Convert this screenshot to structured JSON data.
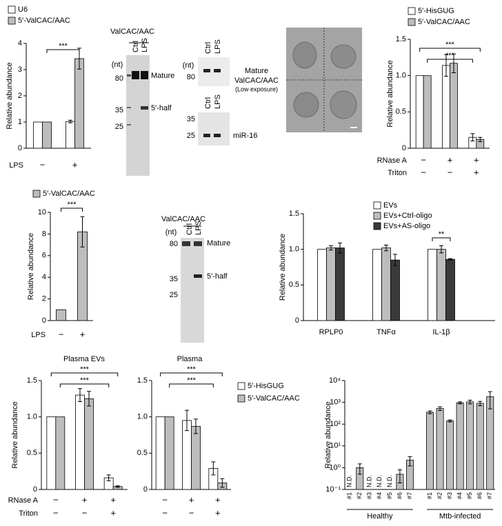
{
  "chart_data": [
    {
      "type": "bar",
      "ylabel": "Relative abundance",
      "ylim": [
        0,
        4
      ],
      "yticks": [
        0,
        1,
        2,
        3,
        4
      ],
      "series": [
        {
          "name": "U6",
          "color": "#ffffff",
          "values": [
            1,
            1.02
          ],
          "errors": [
            0,
            0.05
          ]
        },
        {
          "name": "5′-ValCAC/AAC",
          "color": "#bdbdbd",
          "values": [
            1,
            3.42
          ],
          "errors": [
            0,
            0.4
          ]
        }
      ],
      "category_rows": [
        {
          "label": "LPS",
          "categories": [
            "−",
            "+"
          ]
        }
      ],
      "significance": [
        "***"
      ]
    },
    {
      "type": "bar",
      "ylabel": "Relative abundance",
      "ylim": [
        0,
        1.5
      ],
      "yticks": [
        0,
        0.5,
        {
          "value": 1,
          "label": "1.0"
        },
        1.5
      ],
      "series": [
        {
          "name": "5′-HisGUG",
          "color": "#ffffff",
          "values": [
            1,
            1.14,
            0.15
          ],
          "errors": [
            0,
            0.15,
            0.05
          ]
        },
        {
          "name": "5′-ValCAC/AAC",
          "color": "#bdbdbd",
          "values": [
            1,
            1.17,
            0.12
          ],
          "errors": [
            0,
            0.13,
            0.03
          ]
        }
      ],
      "category_rows": [
        {
          "label": "RNase A",
          "categories": [
            "−",
            "+",
            "+"
          ]
        },
        {
          "label": "Triton",
          "categories": [
            "−",
            "−",
            "+"
          ]
        }
      ],
      "significance": [
        "***",
        "***"
      ]
    },
    {
      "type": "bar",
      "ylabel": "Relative abundance",
      "ylim": [
        0,
        10
      ],
      "yticks": [
        0,
        2,
        4,
        6,
        8,
        10
      ],
      "series": [
        {
          "name": "5′-ValCAC/AAC",
          "color": "#bdbdbd",
          "values": [
            1,
            8.2
          ],
          "errors": [
            0,
            1.4
          ]
        }
      ],
      "category_rows": [
        {
          "label": "LPS",
          "categories": [
            "−",
            "+"
          ]
        }
      ],
      "significance": [
        "***"
      ]
    },
    {
      "type": "bar",
      "ylabel": "Relative abundance",
      "ylim": [
        0,
        1.5
      ],
      "yticks": [
        0,
        0.5,
        {
          "value": 1,
          "label": "1.0"
        },
        1.5
      ],
      "categories": [
        "RPLP0",
        "TNFα",
        "IL-1β"
      ],
      "series": [
        {
          "name": "EVs",
          "color": "#ffffff",
          "values": [
            1,
            1,
            1
          ],
          "errors": [
            0,
            0,
            0
          ]
        },
        {
          "name": "EVs+Ctrl-oligo",
          "color": "#bdbdbd",
          "values": [
            1.02,
            1.02,
            1.0
          ],
          "errors": [
            0.03,
            0.04,
            0.05
          ]
        },
        {
          "name": "EVs+AS-oligo",
          "color": "#3a3a3a",
          "values": [
            1.02,
            0.85,
            0.86
          ],
          "errors": [
            0.07,
            0.08,
            0.01
          ]
        }
      ],
      "significance": [
        "**"
      ]
    },
    {
      "type": "bar",
      "title": "Plasma EVs",
      "ylabel": "Relative abundance",
      "ylim": [
        0,
        1.5
      ],
      "yticks": [
        0,
        0.5,
        {
          "value": 1,
          "label": "1.0"
        },
        1.5
      ],
      "series": [
        {
          "color": "#ffffff",
          "values": [
            1,
            1.3,
            0.16
          ],
          "errors": [
            0,
            0.09,
            0.04
          ]
        },
        {
          "color": "#bdbdbd",
          "values": [
            1,
            1.25,
            0.04
          ],
          "errors": [
            0,
            0.1,
            0.01
          ]
        }
      ],
      "category_rows": [
        {
          "label": "RNase A",
          "categories": [
            "−",
            "+",
            "+"
          ]
        },
        {
          "label": "Triton",
          "categories": [
            "−",
            "−",
            "+"
          ]
        }
      ],
      "significance": [
        "***",
        "***"
      ]
    },
    {
      "type": "bar",
      "title": "Plasma",
      "ylim": [
        0,
        1.5
      ],
      "yticks": [
        0,
        0.5,
        {
          "value": 1,
          "label": "1.0"
        },
        1.5
      ],
      "series": [
        {
          "name": "5′-HisGUG",
          "color": "#ffffff",
          "values": [
            1,
            0.95,
            0.29
          ],
          "errors": [
            0,
            0.14,
            0.09
          ]
        },
        {
          "name": "5′-ValCAC/AAC",
          "color": "#bdbdbd",
          "values": [
            1,
            0.87,
            0.09
          ],
          "errors": [
            0,
            0.1,
            0.06
          ]
        }
      ],
      "category_rows": [
        {
          "categories": [
            "−",
            "+",
            "+"
          ]
        },
        {
          "categories": [
            "−",
            "−",
            "+"
          ]
        }
      ],
      "significance": [
        "***",
        "***"
      ]
    },
    {
      "type": "bar",
      "ylabel": "Relative abundance",
      "log_y": true,
      "ylim": [
        0.1,
        10000
      ],
      "yticks": [
        {
          "value": 0.1,
          "label": "10⁻¹"
        },
        {
          "value": 1,
          "label": "10⁰"
        },
        {
          "value": 10,
          "label": "10¹"
        },
        {
          "value": 100,
          "label": "10²"
        },
        {
          "value": 1000,
          "label": "10³"
        },
        {
          "value": 10000,
          "label": "10⁴"
        }
      ],
      "color": "#bdbdbd",
      "groups": [
        {
          "name": "Healthy",
          "categories": [
            "#1",
            "#2",
            "#3",
            "#4",
            "#5",
            "#6",
            "#7"
          ],
          "values": [
            null,
            1.0,
            null,
            null,
            null,
            0.5,
            2.2
          ],
          "errors": [
            null,
            0.5,
            null,
            null,
            null,
            0.3,
            1.0
          ],
          "value_labels": [
            "N.D.",
            null,
            "N.D.",
            "N.D.",
            "N.D.",
            null,
            null
          ]
        },
        {
          "name": "Mtb-infected",
          "categories": [
            "#1",
            "#2",
            "#3",
            "#4",
            "#5",
            "#6",
            "#7"
          ],
          "values": [
            350,
            520,
            140,
            950,
            1050,
            900,
            1800
          ],
          "errors": [
            50,
            100,
            15,
            100,
            200,
            200,
            1300
          ]
        }
      ]
    }
  ],
  "gels": [
    {
      "title": "ValCAC/AAC",
      "unit": "(nt)",
      "markers": [
        80,
        35,
        25
      ],
      "lanes": [
        "Ctrl",
        "LPS"
      ],
      "bands": [
        {
          "label_lines": [
            "Mature"
          ]
        },
        {
          "label_lines": [
            "5′-half"
          ]
        }
      ]
    },
    {
      "unit": "(nt)",
      "markers": [
        80
      ],
      "lanes": [
        "Ctrl",
        "LPS"
      ],
      "bands": [
        {
          "label_lines": [
            "Mature",
            "ValCAC/AAC",
            "(Low exposure)"
          ]
        }
      ]
    },
    {
      "markers": [
        35,
        25
      ],
      "lanes": [
        "Ctrl",
        "LPS"
      ],
      "bands": [
        {
          "label_lines": [
            "miR-16"
          ]
        }
      ]
    },
    {
      "title": "ValCAC/AAC",
      "unit": "(nt)",
      "markers": [
        80,
        35,
        25
      ],
      "lanes": [
        "Ctrl",
        "LPS"
      ],
      "bands": [
        {
          "label_lines": [
            "Mature"
          ]
        },
        {
          "label_lines": [
            "5′-half"
          ]
        }
      ]
    }
  ]
}
